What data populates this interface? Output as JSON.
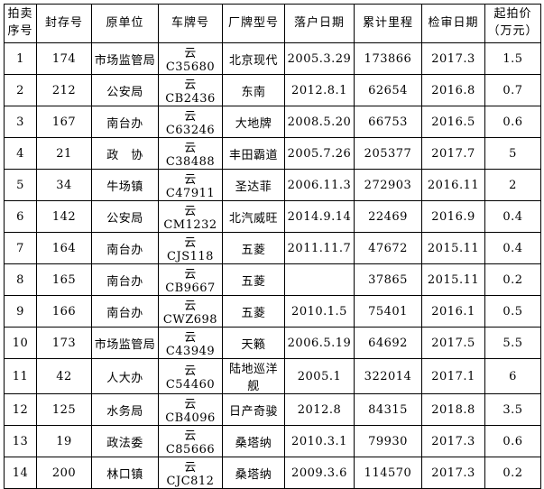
{
  "page": {
    "background_color": "#ffffff",
    "border_color": "#000000",
    "text_color": "#000000"
  },
  "table": {
    "headers": [
      "拍卖\n序号",
      "封存号",
      "原单位",
      "车牌号",
      "厂牌型号",
      "落户日期",
      "累计里程",
      "检审日期",
      "起拍价\n（万元）"
    ],
    "rows": [
      [
        "1",
        "174",
        "市场监管局",
        "云 C35680",
        "北京现代",
        "2005.3.29",
        "173866",
        "2017.3",
        "1.5"
      ],
      [
        "2",
        "212",
        "公安局",
        "云 CB2436",
        "东南",
        "2012.8.1",
        "62654",
        "2016.8",
        "0.7"
      ],
      [
        "3",
        "167",
        "南台办",
        "云 C63246",
        "大地牌",
        "2008.5.20",
        "66753",
        "2016.5",
        "0.6"
      ],
      [
        "4",
        "21",
        "政　协",
        "云 C38488",
        "丰田霸道",
        "2005.7.26",
        "205377",
        "2017.7",
        "5"
      ],
      [
        "5",
        "34",
        "牛场镇",
        "云 C47911",
        "圣达菲",
        "2006.11.3",
        "272903",
        "2016.11",
        "2"
      ],
      [
        "6",
        "142",
        "公安局",
        "云 CM1232",
        "北汽威旺",
        "2014.9.14",
        "22469",
        "2016.9",
        "0.4"
      ],
      [
        "7",
        "164",
        "南台办",
        "云 CJS118",
        "五菱",
        "2011.11.7",
        "47672",
        "2015.11",
        "0.4"
      ],
      [
        "8",
        "165",
        "南台办",
        "云 CB9667",
        "五菱",
        "",
        "37865",
        "2015.11",
        "0.2"
      ],
      [
        "9",
        "166",
        "南台办",
        "云 CWZ698",
        "五菱",
        "2010.1.5",
        "75401",
        "2016.1",
        "0.5"
      ],
      [
        "10",
        "173",
        "市场监管局",
        "云 C43949",
        "天籁",
        "2006.5.19",
        "64692",
        "2017.5",
        "5.5"
      ],
      [
        "11",
        "42",
        "人大办",
        "云 C54460",
        "陆地巡洋舰",
        "2005.1",
        "322014",
        "2017.1",
        "6"
      ],
      [
        "12",
        "125",
        "水务局",
        "云 CB4096",
        "日产奇骏",
        "2012.8",
        "84315",
        "2018.8",
        "3.5"
      ],
      [
        "13",
        "19",
        "政法委",
        "云 C85666",
        "桑塔纳",
        "2010.3.1",
        "79930",
        "2017.3",
        "0.6"
      ],
      [
        "14",
        "200",
        "林口镇",
        "云 CJC812",
        "桑塔纳",
        "2009.3.6",
        "114570",
        "2017.3",
        "0.2"
      ]
    ]
  }
}
